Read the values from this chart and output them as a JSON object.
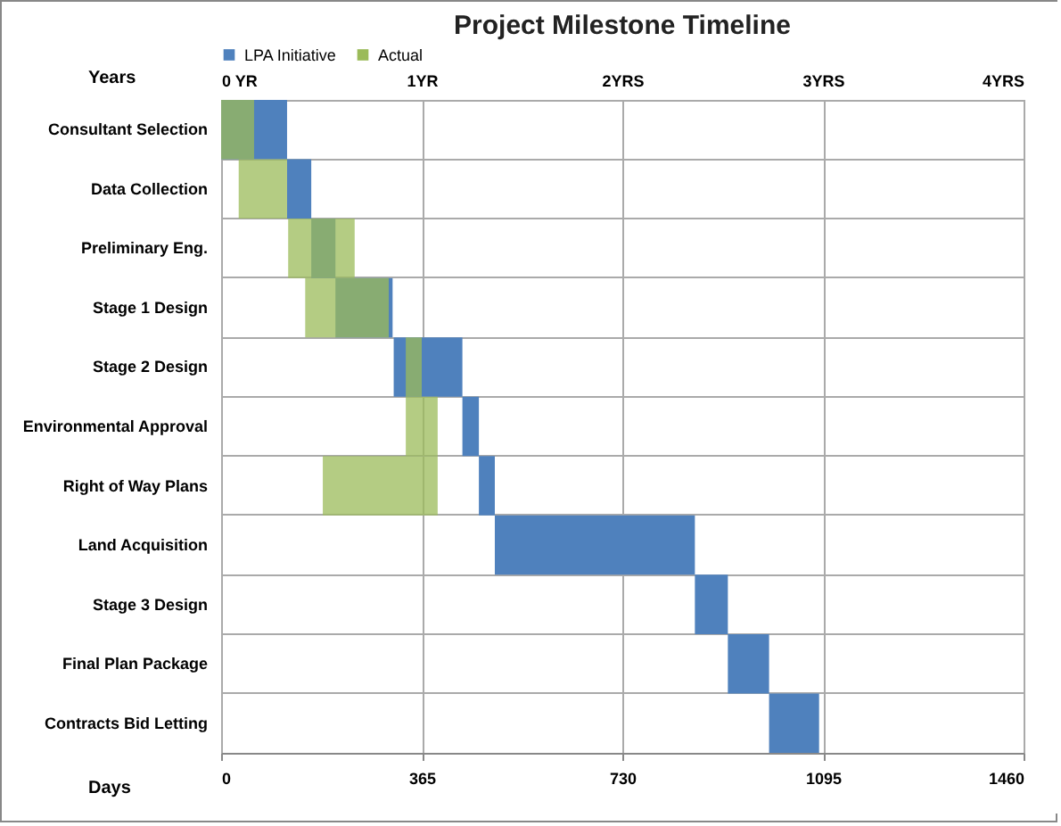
{
  "chart_data": {
    "type": "bar",
    "orientation": "horizontal",
    "title": "Project Milestone Timeline",
    "xlabel": "Days",
    "x2label": "Years",
    "categories": [
      "Consultant Selection",
      "Data Collection",
      "Preliminary Eng.",
      "Stage 1 Design",
      "Stage 2 Design",
      "Environmental Approval",
      "Right of Way Plans",
      "Land Acquisition",
      "Stage 3 Design",
      "Final Plan Package",
      "Contracts Bid Letting"
    ],
    "series": [
      {
        "name": "LPA Initiative",
        "color": "#4f81bd",
        "base": [
          0,
          120,
          164,
          208,
          314,
          439,
          469,
          498,
          862,
          922,
          997
        ],
        "values": [
          120,
          44,
          44,
          104,
          125,
          30,
          29,
          364,
          60,
          75,
          91
        ]
      },
      {
        "name": "Actual",
        "color": "#9bbb59",
        "base": [
          0,
          32,
          122,
          153,
          336,
          336,
          185,
          null,
          null,
          null,
          null
        ],
        "values": [
          60,
          88,
          121,
          152,
          29,
          58,
          209,
          null,
          null,
          null,
          null
        ]
      }
    ],
    "xlim": [
      0,
      1460
    ],
    "xticks": [
      0,
      365,
      730,
      1095,
      1460
    ],
    "x2lim": [
      0,
      4
    ],
    "x2ticks": [
      {
        "value": 0,
        "label": "0 YR"
      },
      {
        "value": 1,
        "label": "1YR"
      },
      {
        "value": 2,
        "label": "2YRS"
      },
      {
        "value": 3,
        "label": "3YRS"
      },
      {
        "value": 4,
        "label": "4YRS"
      }
    ],
    "grid": true,
    "legend": "top"
  }
}
